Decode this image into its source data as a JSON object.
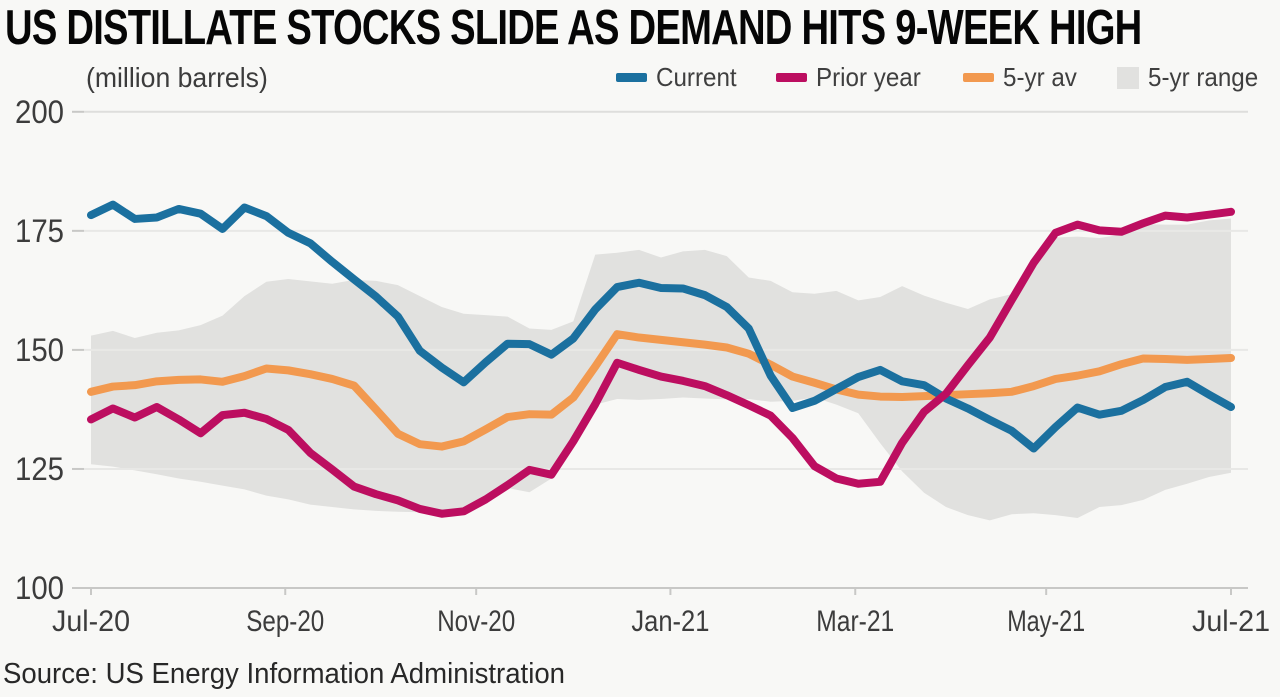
{
  "title": "US DISTILLATE STOCKS SLIDE AS DEMAND HITS 9-WEEK HIGH",
  "subtitle": "(million barrels)",
  "source": "Source: US Energy Information Administration",
  "colors": {
    "background": "#f8f8f6",
    "current": "#1b709f",
    "prior_year": "#bc0e60",
    "five_yr_avg": "#f2994f",
    "five_yr_range": "#e1e1df",
    "gridline": "#e8e8e6",
    "gridline_top": "#dededc",
    "axis_line": "#c8c8c6",
    "axis_text": "#3c3c3c",
    "title_text": "#060606"
  },
  "chart_data": {
    "type": "line",
    "title": "US DISTILLATE STOCKS SLIDE AS DEMAND HITS 9-WEEK HIGH",
    "unit_label": "(million barrels)",
    "xlabel": "",
    "ylabel": "million barrels",
    "ylim": [
      100,
      200
    ],
    "y_ticks": [
      100,
      125,
      150,
      175,
      200
    ],
    "x_tick_labels": [
      "Jul-20",
      "Sep-20",
      "Nov-20",
      "Jan-21",
      "Mar-21",
      "May-21",
      "Jul-21"
    ],
    "x_tick_weeks": [
      0,
      8.86,
      17.57,
      26.43,
      34.86,
      43.57,
      52
    ],
    "x_description": "53 weekly data points from Jul-2020 to Jul-2021",
    "grid": "horizontal",
    "legend_position": "top-right",
    "series": [
      {
        "name": "Current",
        "color": "#1b709f",
        "values": [
          178.3,
          180.5,
          177.5,
          177.8,
          179.6,
          178.6,
          175.4,
          179.9,
          178.1,
          174.6,
          172.4,
          168.5,
          164.8,
          161.2,
          157.0,
          149.8,
          146.3,
          143.2,
          147.4,
          151.3,
          151.2,
          149.0,
          152.4,
          158.5,
          163.2,
          164.1,
          163.0,
          162.9,
          161.5,
          159.0,
          154.5,
          144.6,
          137.8,
          139.3,
          141.8,
          144.3,
          145.8,
          143.4,
          142.6,
          139.8,
          137.7,
          135.3,
          133.0,
          129.3,
          133.8,
          137.9,
          136.4,
          137.2,
          139.5,
          142.2,
          143.3,
          140.6,
          138.0
        ]
      },
      {
        "name": "Prior year",
        "color": "#bc0e60",
        "values": [
          135.4,
          137.7,
          135.8,
          138.0,
          135.4,
          132.5,
          136.3,
          136.8,
          135.5,
          133.2,
          128.4,
          124.9,
          121.3,
          119.7,
          118.4,
          116.6,
          115.6,
          116.1,
          118.6,
          121.6,
          124.8,
          123.8,
          130.8,
          138.6,
          147.3,
          145.8,
          144.4,
          143.5,
          142.4,
          140.5,
          138.4,
          136.2,
          131.5,
          125.6,
          123.0,
          121.9,
          122.3,
          130.5,
          137.0,
          140.8,
          146.8,
          152.6,
          160.5,
          168.3,
          174.6,
          176.3,
          175.1,
          174.8,
          176.6,
          178.2,
          177.8,
          178.4,
          179.0
        ]
      },
      {
        "name": "5-yr av",
        "color": "#f2994f",
        "values": [
          141.2,
          142.3,
          142.6,
          143.4,
          143.7,
          143.8,
          143.3,
          144.5,
          146.1,
          145.7,
          144.9,
          143.9,
          142.5,
          137.5,
          132.4,
          130.2,
          129.7,
          130.8,
          133.3,
          135.9,
          136.5,
          136.4,
          140.0,
          146.5,
          153.3,
          152.6,
          152.1,
          151.6,
          151.1,
          150.5,
          149.2,
          146.9,
          144.4,
          143.1,
          141.7,
          140.6,
          140.2,
          140.1,
          140.3,
          140.5,
          140.7,
          140.9,
          141.2,
          142.4,
          143.9,
          144.6,
          145.5,
          147.0,
          148.2,
          148.1,
          147.9,
          148.1,
          148.3
        ]
      }
    ],
    "band": {
      "name": "5-yr range",
      "color": "#e1e1df",
      "top": [
        153.0,
        154.0,
        152.5,
        153.6,
        154.1,
        155.2,
        157.2,
        161.3,
        164.3,
        164.9,
        164.4,
        163.9,
        164.7,
        164.5,
        163.6,
        161.3,
        159.0,
        157.6,
        157.3,
        157.0,
        154.5,
        154.2,
        156.0,
        170.0,
        170.4,
        171.0,
        169.4,
        170.7,
        171.0,
        169.7,
        165.2,
        164.5,
        162.1,
        161.8,
        162.4,
        160.4,
        161.1,
        163.4,
        161.4,
        159.9,
        158.6,
        160.6,
        161.7,
        167.5,
        173.6,
        173.8,
        173.5,
        174.2,
        176.4,
        176.3,
        176.3,
        177.2,
        177.6
      ],
      "bottom": [
        126.0,
        125.5,
        124.7,
        123.9,
        123.0,
        122.3,
        121.5,
        120.7,
        119.4,
        118.6,
        117.5,
        117.0,
        116.5,
        116.2,
        116.0,
        115.9,
        116.0,
        116.4,
        118.5,
        121.0,
        120.1,
        123.0,
        131.5,
        138.5,
        139.7,
        139.5,
        139.7,
        140.0,
        139.8,
        139.6,
        139.7,
        139.1,
        139.3,
        140.0,
        138.5,
        136.7,
        130.4,
        124.5,
        120.0,
        117.0,
        115.3,
        114.2,
        115.5,
        115.7,
        115.3,
        114.7,
        117.0,
        117.4,
        118.5,
        120.6,
        121.9,
        123.3,
        124.2
      ]
    }
  },
  "legend": [
    {
      "label": "Current",
      "color": "#1b709f",
      "swatch": "line"
    },
    {
      "label": "Prior year",
      "color": "#bc0e60",
      "swatch": "line"
    },
    {
      "label": "5-yr av",
      "color": "#f2994f",
      "swatch": "line"
    },
    {
      "label": "5-yr range",
      "color": "#e1e1df",
      "swatch": "area"
    }
  ]
}
